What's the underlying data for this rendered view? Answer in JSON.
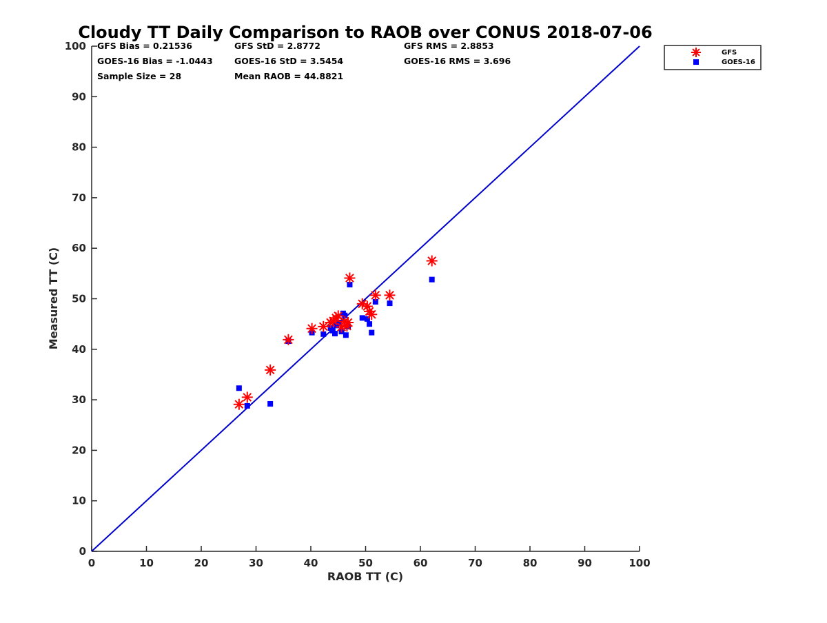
{
  "chart_data": {
    "type": "scatter",
    "title": "Cloudy TT Daily Comparison to RAOB over CONUS 2018-07-06",
    "xlabel": "RAOB TT (C)",
    "ylabel": "Measured TT (C)",
    "xlim": [
      0,
      100
    ],
    "ylim": [
      0,
      100
    ],
    "x_ticks": [
      0,
      10,
      20,
      30,
      40,
      50,
      60,
      70,
      80,
      90,
      100
    ],
    "y_ticks": [
      0,
      10,
      20,
      30,
      40,
      50,
      60,
      70,
      80,
      90,
      100
    ],
    "grid": false,
    "legend_position": "top-right, outside plot area",
    "reference_line": {
      "style": "one-to-one",
      "color": "#0000cc"
    },
    "stats": [
      {
        "label": "GFS Bias = 0.21536"
      },
      {
        "label": "GFS StD = 2.8772"
      },
      {
        "label": "GFS RMS = 2.8853"
      },
      {
        "label": "GOES-16 Bias = -1.0443"
      },
      {
        "label": "GOES-16 StD = 3.5454"
      },
      {
        "label": "GOES-16 RMS = 3.696"
      },
      {
        "label": "Sample Size = 28"
      },
      {
        "label": "Mean RAOB = 44.8821"
      }
    ],
    "series": [
      {
        "name": "GFS",
        "marker": "asterisk",
        "color": "#ff0000",
        "points": [
          [
            26.9,
            29.1
          ],
          [
            28.4,
            30.5
          ],
          [
            32.6,
            35.9
          ],
          [
            35.9,
            41.9
          ],
          [
            40.2,
            44.1
          ],
          [
            42.3,
            44.5
          ],
          [
            43.6,
            45.3
          ],
          [
            44.1,
            45.6
          ],
          [
            44.6,
            46.2
          ],
          [
            45.0,
            46.6
          ],
          [
            45.6,
            44.4
          ],
          [
            46.2,
            45.5
          ],
          [
            46.6,
            44.6
          ],
          [
            46.8,
            45.3
          ],
          [
            47.1,
            54.1
          ],
          [
            49.4,
            49.0
          ],
          [
            50.3,
            48.5
          ],
          [
            50.7,
            47.5
          ],
          [
            51.1,
            46.9
          ],
          [
            51.8,
            50.7
          ],
          [
            54.4,
            50.7
          ],
          [
            62.1,
            57.5
          ]
        ]
      },
      {
        "name": "GOES-16",
        "marker": "square",
        "color": "#0000ff",
        "points": [
          [
            26.9,
            32.3
          ],
          [
            28.4,
            28.8
          ],
          [
            32.6,
            29.2
          ],
          [
            35.9,
            41.6
          ],
          [
            40.2,
            43.3
          ],
          [
            42.3,
            43.0
          ],
          [
            43.6,
            44.2
          ],
          [
            44.0,
            43.7
          ],
          [
            44.4,
            43.1
          ],
          [
            44.7,
            44.7
          ],
          [
            45.2,
            45.3
          ],
          [
            45.6,
            43.5
          ],
          [
            45.9,
            47.1
          ],
          [
            46.2,
            46.7
          ],
          [
            46.4,
            42.8
          ],
          [
            46.8,
            44.5
          ],
          [
            47.1,
            52.8
          ],
          [
            49.4,
            46.2
          ],
          [
            50.3,
            46.0
          ],
          [
            50.7,
            45.0
          ],
          [
            51.1,
            43.3
          ],
          [
            51.8,
            49.4
          ],
          [
            54.4,
            49.1
          ],
          [
            62.1,
            53.8
          ]
        ]
      }
    ]
  }
}
